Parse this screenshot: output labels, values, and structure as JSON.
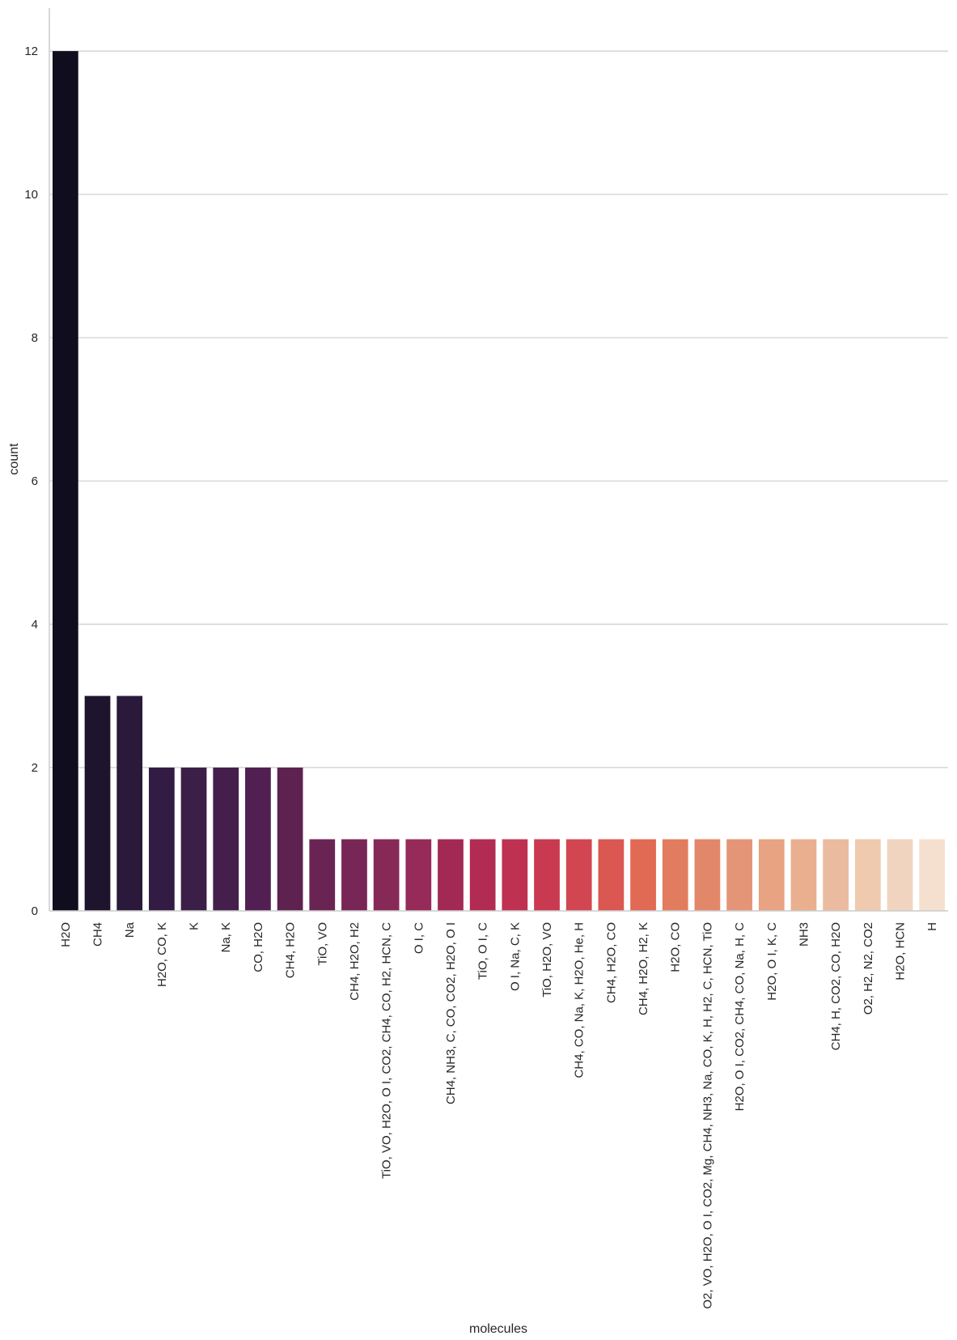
{
  "chart_data": {
    "type": "bar",
    "title": "",
    "xlabel": "molecules",
    "ylabel": "count",
    "ylim": [
      0,
      12.6
    ],
    "yticks": [
      0,
      2,
      4,
      6,
      8,
      10,
      12
    ],
    "grid": "horizontal",
    "legend": "none",
    "palette": "rocket",
    "categories": [
      "H2O",
      "CH4",
      "Na",
      "H2O, CO, K",
      "K",
      "Na, K",
      "CO, H2O",
      "CH4, H2O",
      "TiO, VO",
      "CH4, H2O, H2",
      "TiO, VO, H2O, O I, CO2, CH4, CO, H2, HCN, C",
      "O I, C",
      "CH4, NH3, C, CO, CO2, H2O, O I",
      "TiO, O I, C",
      "O I, Na, C, K",
      "TiO, H2O, VO",
      "CH4, CO, Na, K, H2O, He, H",
      "CH4, H2O, CO",
      "CH4, H2O, H2, K",
      "H2O, CO",
      "O2, VO, H2O, O I, CO2, Mg, CH4, NH3, Na, CO, K, H, H2, C, HCN, TiO",
      "H2O, O I, CO2, CH4, CO, Na, H, C",
      "H2O, O I, K, C",
      "NH3",
      "CH4, H, CO2, CO, H2O",
      "O2, H2, N2, CO2",
      "H2O, HCN",
      "H"
    ],
    "values": [
      12,
      3,
      3,
      2,
      2,
      2,
      2,
      2,
      1,
      1,
      1,
      1,
      1,
      1,
      1,
      1,
      1,
      1,
      1,
      1,
      1,
      1,
      1,
      1,
      1,
      1,
      1,
      1
    ],
    "colors": [
      "#100d1f",
      "#1e142e",
      "#2a193a",
      "#331c43",
      "#3c1f47",
      "#441f4c",
      "#511f51",
      "#5e2251",
      "#6a2454",
      "#782656",
      "#872957",
      "#962a58",
      "#a32955",
      "#b22b53",
      "#bf3150",
      "#c9394f",
      "#d14651",
      "#da5752",
      "#e16a55",
      "#e17d5e",
      "#e3876a",
      "#e59577",
      "#e7a382",
      "#e9b08f",
      "#ebbb9f",
      "#efcaae",
      "#f1d4c0",
      "#f5e0cf"
    ]
  }
}
